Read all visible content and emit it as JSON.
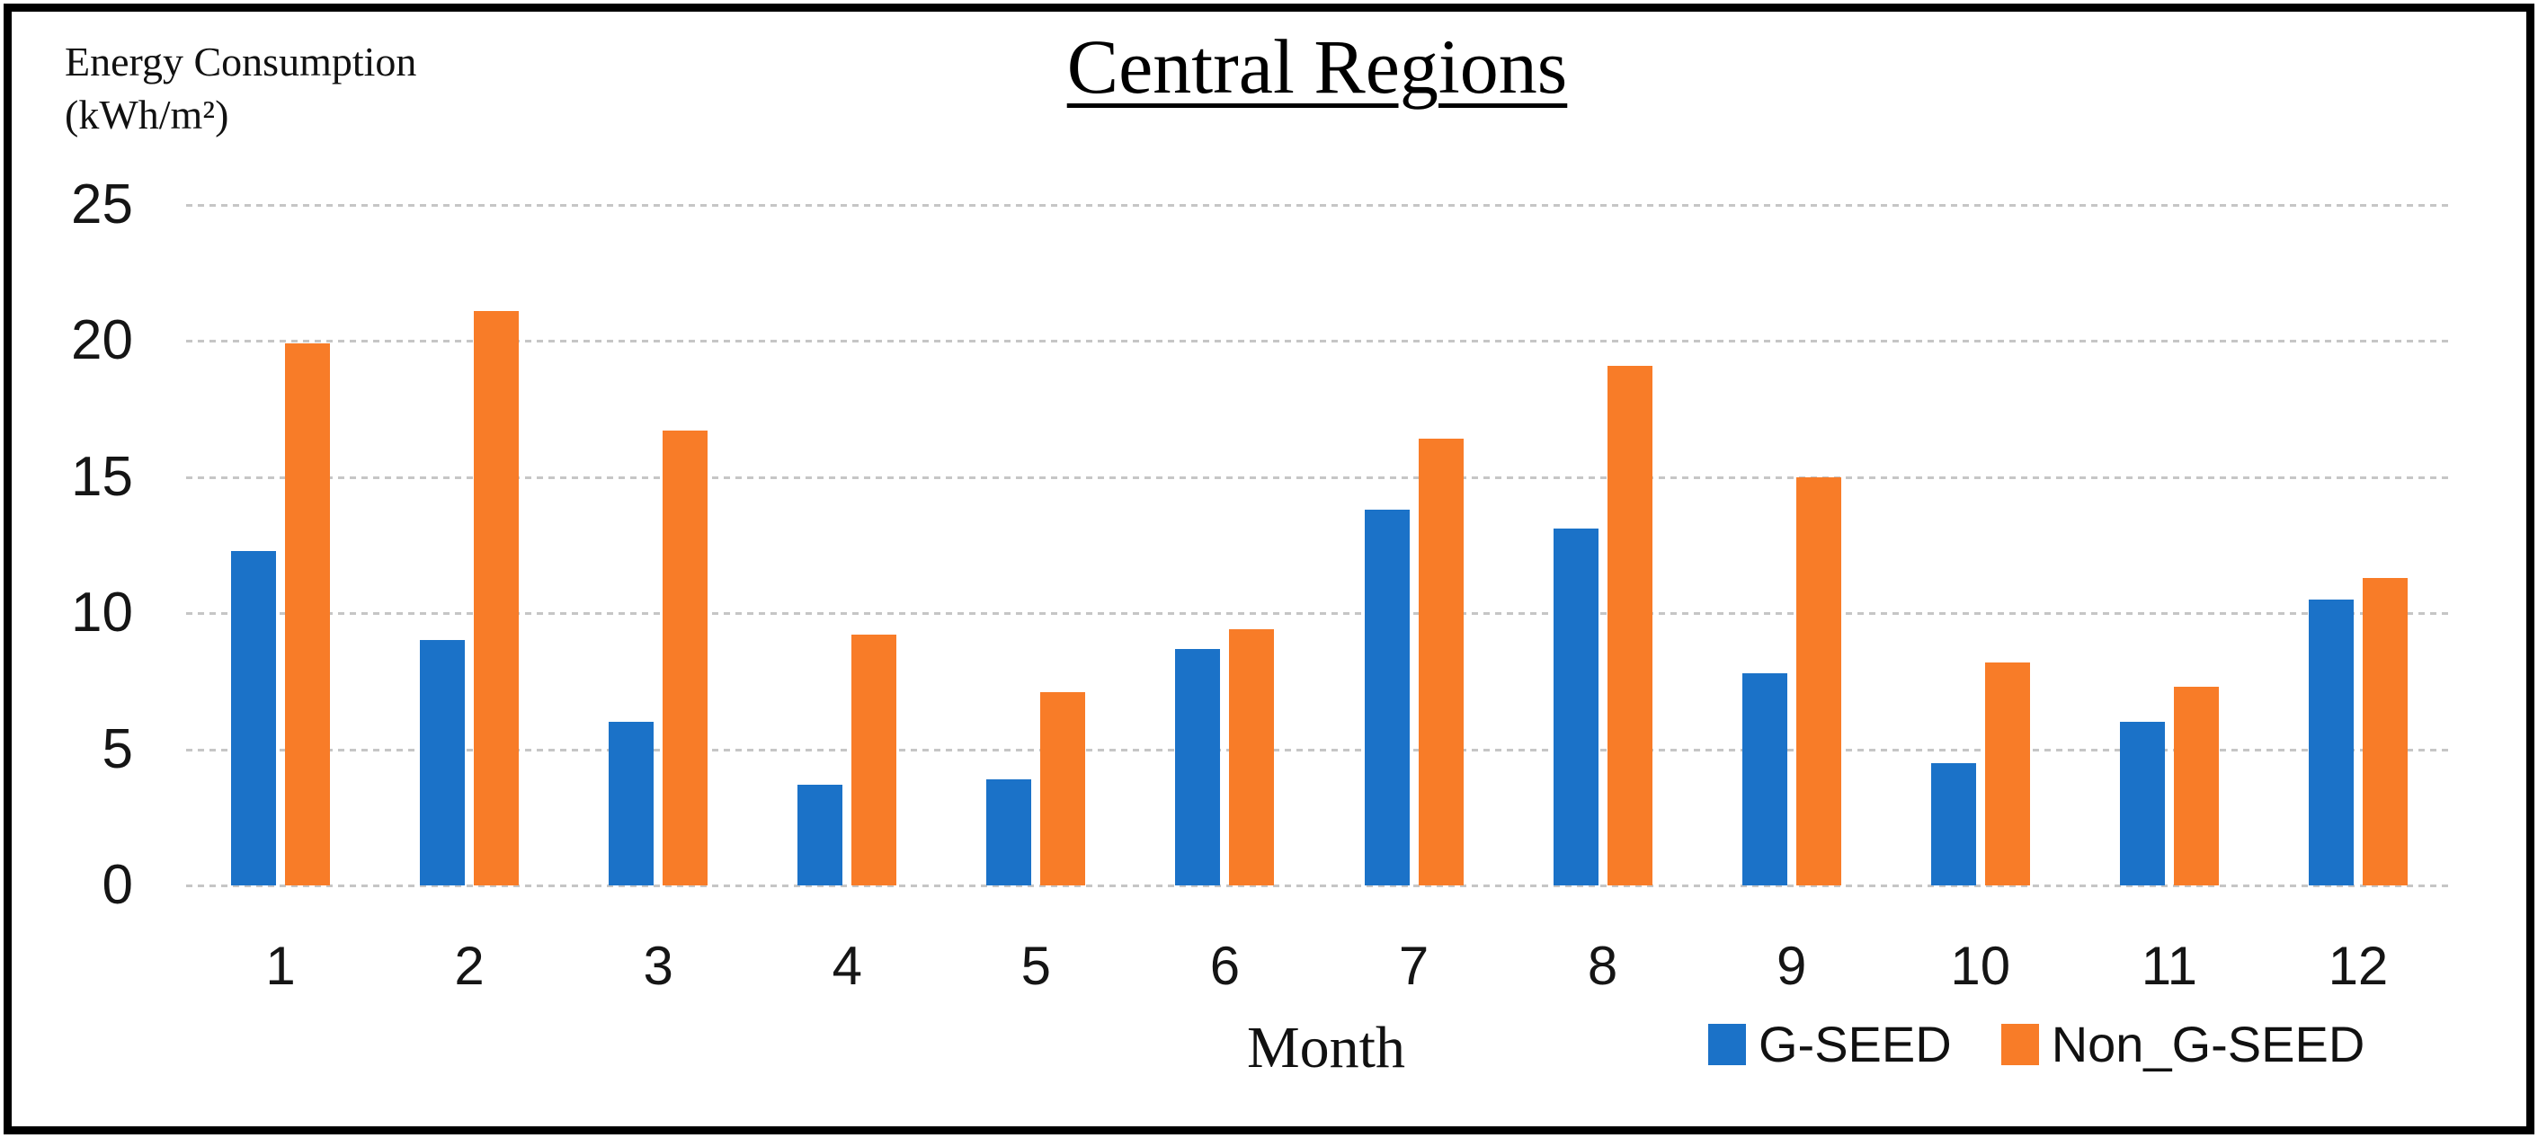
{
  "title": "Central Regions",
  "y_axis": {
    "title_line1": "Energy Consumption",
    "title_line2": "(kWh/m²)"
  },
  "x_axis": {
    "title": "Month"
  },
  "legend": [
    {
      "label": "G-SEED",
      "color": "#1B72C8"
    },
    {
      "label": "Non_G-SEED",
      "color": "#F87C28"
    }
  ],
  "colors": {
    "gseed_blue": "#1B72C8",
    "non_gseed_orange": "#F87C28",
    "gridline_gray": "#C6C6C6",
    "frame_black": "#000000"
  },
  "chart_data": {
    "type": "bar",
    "title": "Central Regions",
    "xlabel": "Month",
    "ylabel": "Energy Consumption (kWh/m²)",
    "ylim": [
      0,
      25
    ],
    "yticks": [
      0,
      5,
      10,
      15,
      20,
      25
    ],
    "grid": true,
    "legend_position": "bottom-right",
    "categories": [
      "1",
      "2",
      "3",
      "4",
      "5",
      "6",
      "7",
      "8",
      "9",
      "10",
      "11",
      "12"
    ],
    "series": [
      {
        "name": "G-SEED",
        "color": "#1B72C8",
        "values": [
          12.3,
          9.0,
          6.0,
          3.7,
          3.9,
          8.7,
          13.8,
          13.1,
          7.8,
          4.5,
          6.0,
          10.5
        ]
      },
      {
        "name": "Non_G-SEED",
        "color": "#F87C28",
        "values": [
          19.9,
          21.1,
          16.7,
          9.2,
          7.1,
          9.4,
          16.4,
          19.1,
          15.0,
          8.2,
          7.3,
          11.3
        ]
      }
    ]
  }
}
